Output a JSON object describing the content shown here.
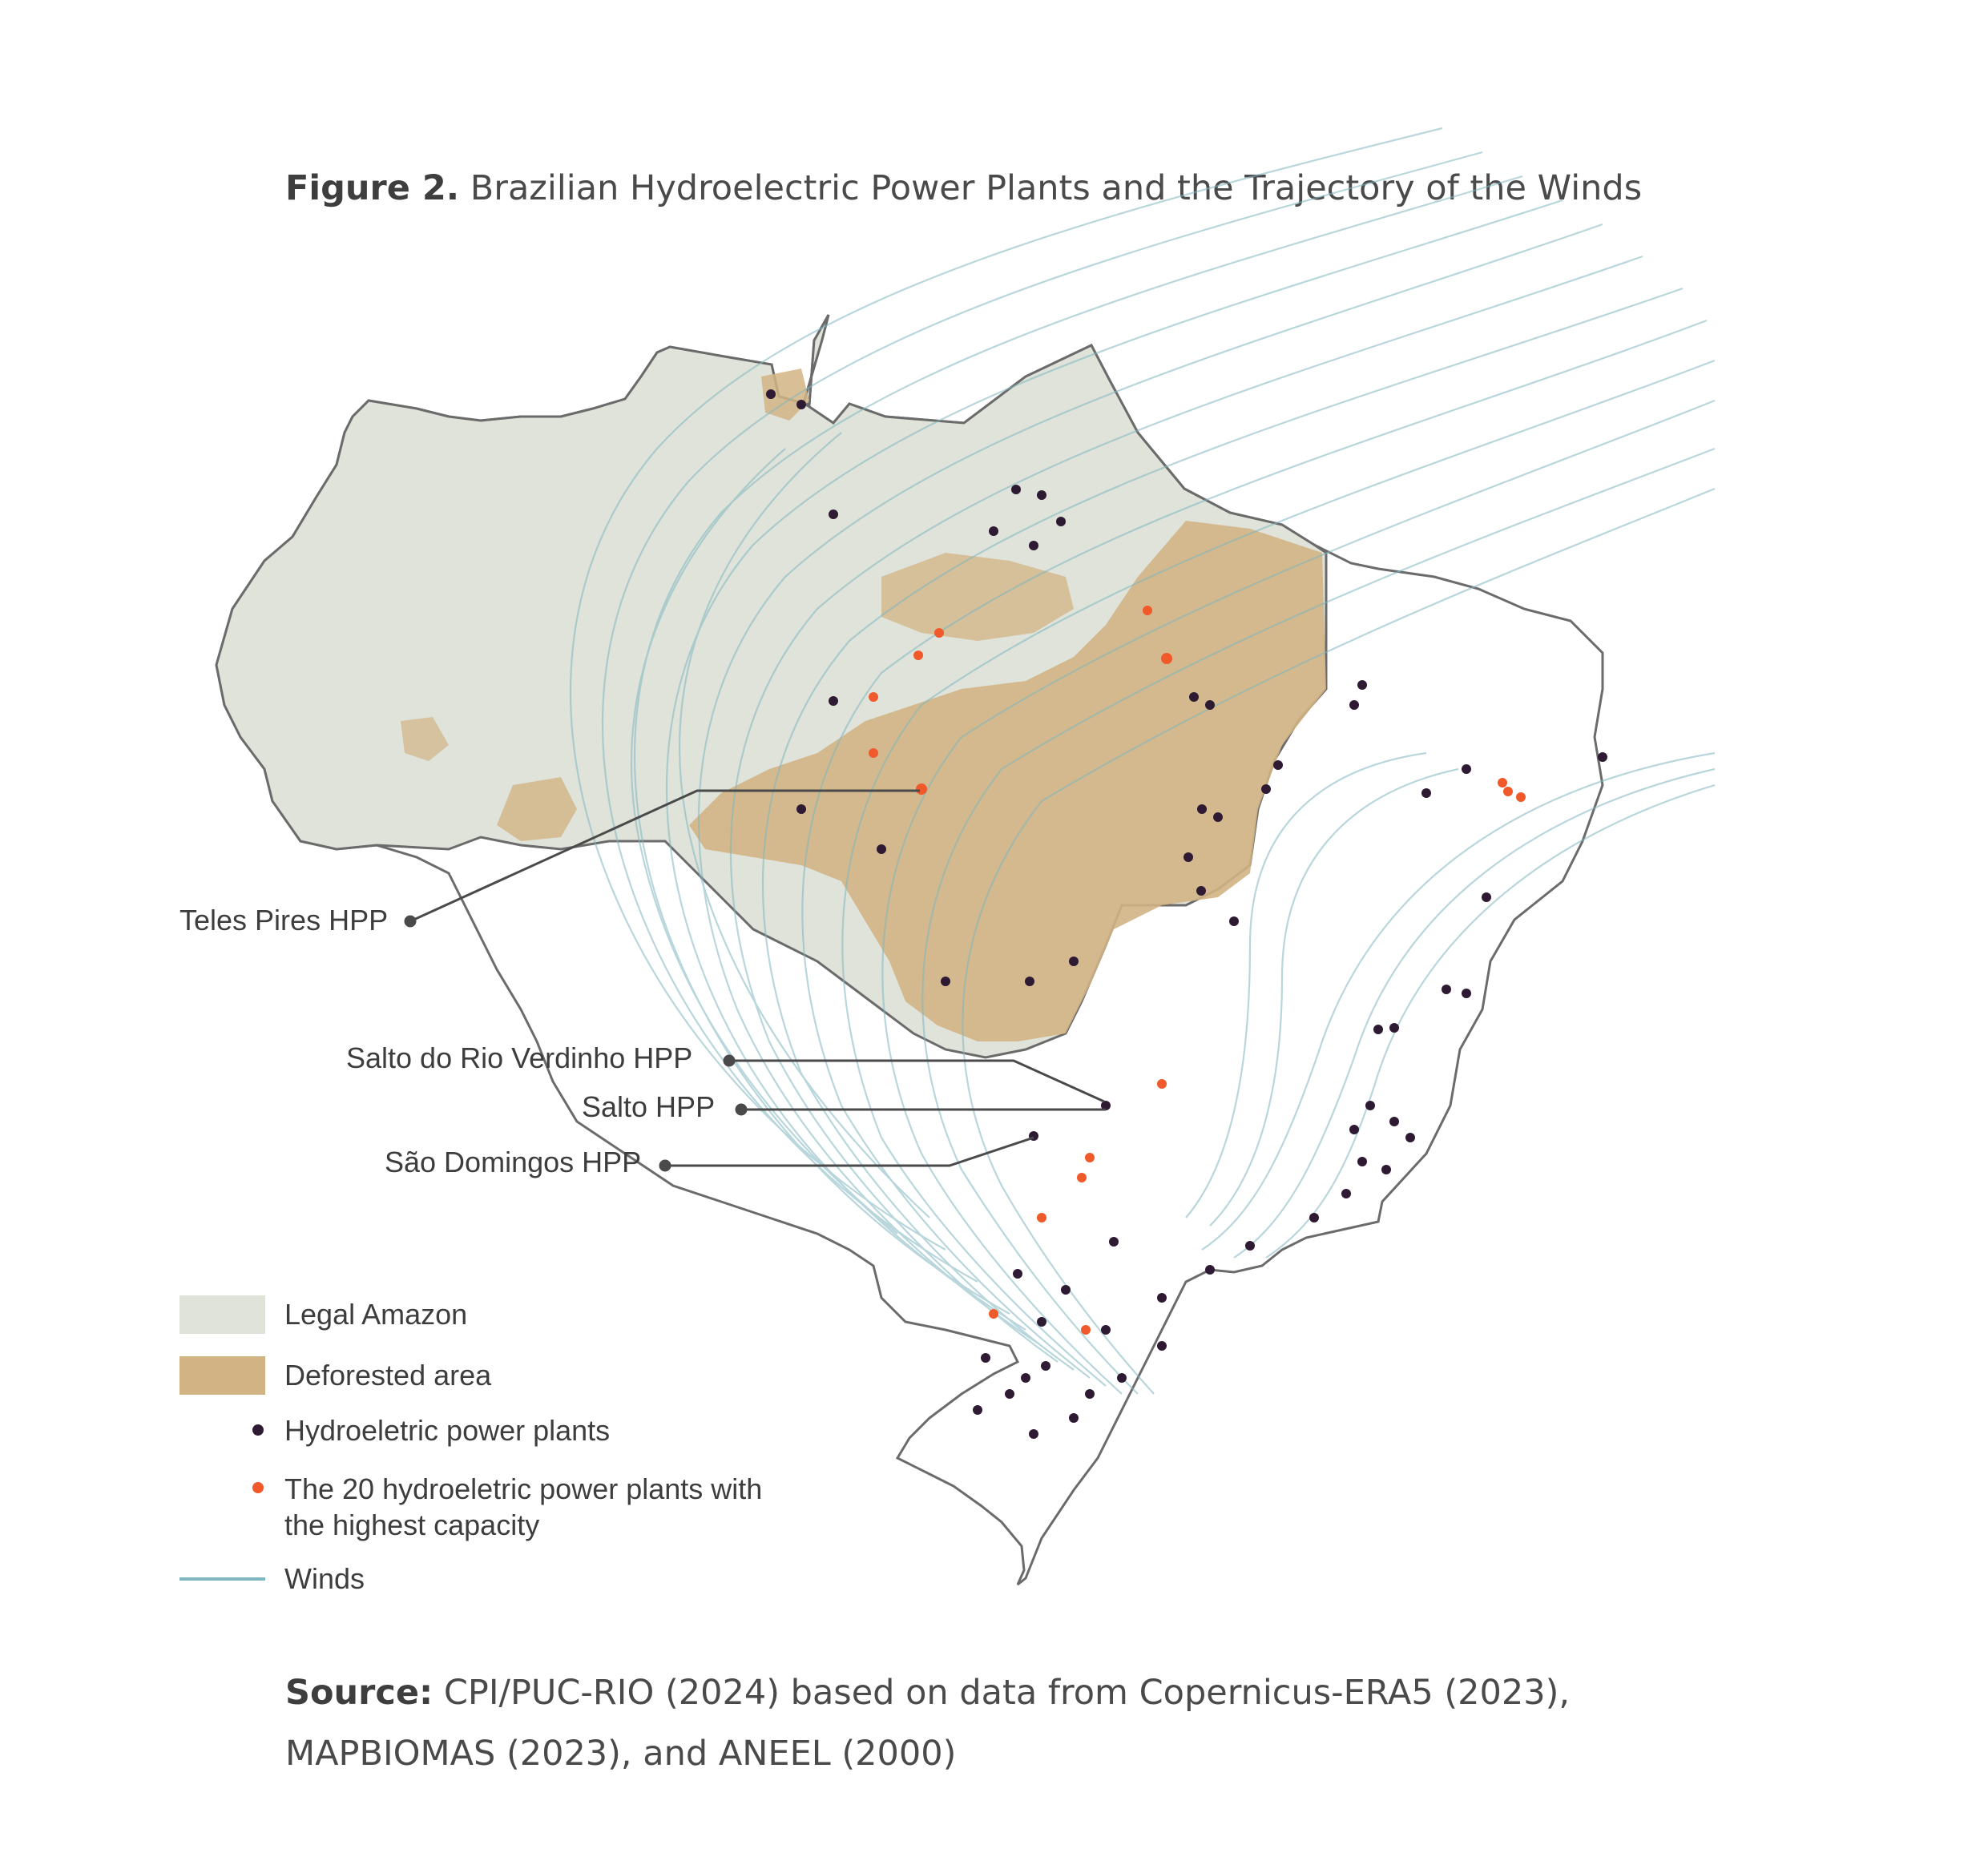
{
  "title": {
    "prefix": "Figure 2.",
    "text": "Brazilian Hydroelectric Power Plants and the Trajectory of the Winds"
  },
  "callouts": [
    {
      "id": "teles-pires",
      "label": "Teles Pires HPP"
    },
    {
      "id": "salto-rio-verdinho",
      "label": "Salto do Rio Verdinho HPP"
    },
    {
      "id": "salto",
      "label": "Salto HPP"
    },
    {
      "id": "sao-domingos",
      "label": "São Domingos HPP"
    }
  ],
  "legend": {
    "legal_amazon": "Legal Amazon",
    "deforested": "Deforested area",
    "hpp": "Hydroeletric power plants",
    "top20_line1": "The 20 hydroeletric power plants with",
    "top20_line2": "the highest capacity",
    "winds": "Winds"
  },
  "colors": {
    "legal_amazon": "#dfe3da",
    "deforested": "#d2b484",
    "hpp": "#2e1a33",
    "top20": "#f05a2a",
    "winds": "#7fb6bf",
    "border": "#6b6b6b"
  },
  "source": {
    "prefix": "Source:",
    "text": "CPI/PUC-RIO (2024) based on data from Copernicus-ERA5 (2023), MAPBIOMAS (2023), and ANEEL (2000)"
  }
}
